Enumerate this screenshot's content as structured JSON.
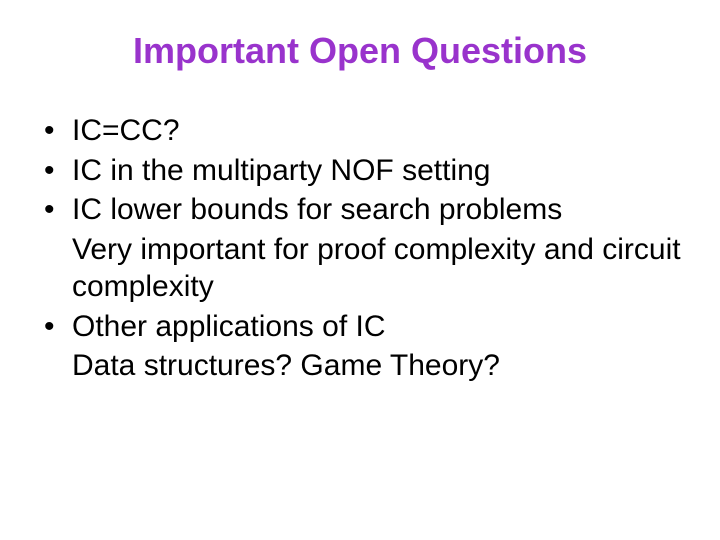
{
  "slide": {
    "title": "Important Open Questions",
    "title_color": "#9933cc",
    "title_fontsize": 36,
    "body_color": "#000000",
    "body_fontsize": 30,
    "bullet_glyph": "•",
    "background_color": "#ffffff",
    "items": [
      {
        "type": "bullet",
        "text": "IC=CC?"
      },
      {
        "type": "bullet",
        "text": "IC in the multiparty NOF setting"
      },
      {
        "type": "bullet",
        "text": "IC lower bounds for search problems"
      },
      {
        "type": "sub",
        "text": "Very important for proof complexity and circuit complexity"
      },
      {
        "type": "bullet",
        "text": "Other applications of IC"
      },
      {
        "type": "sub",
        "text": "Data structures? Game Theory?"
      }
    ]
  }
}
